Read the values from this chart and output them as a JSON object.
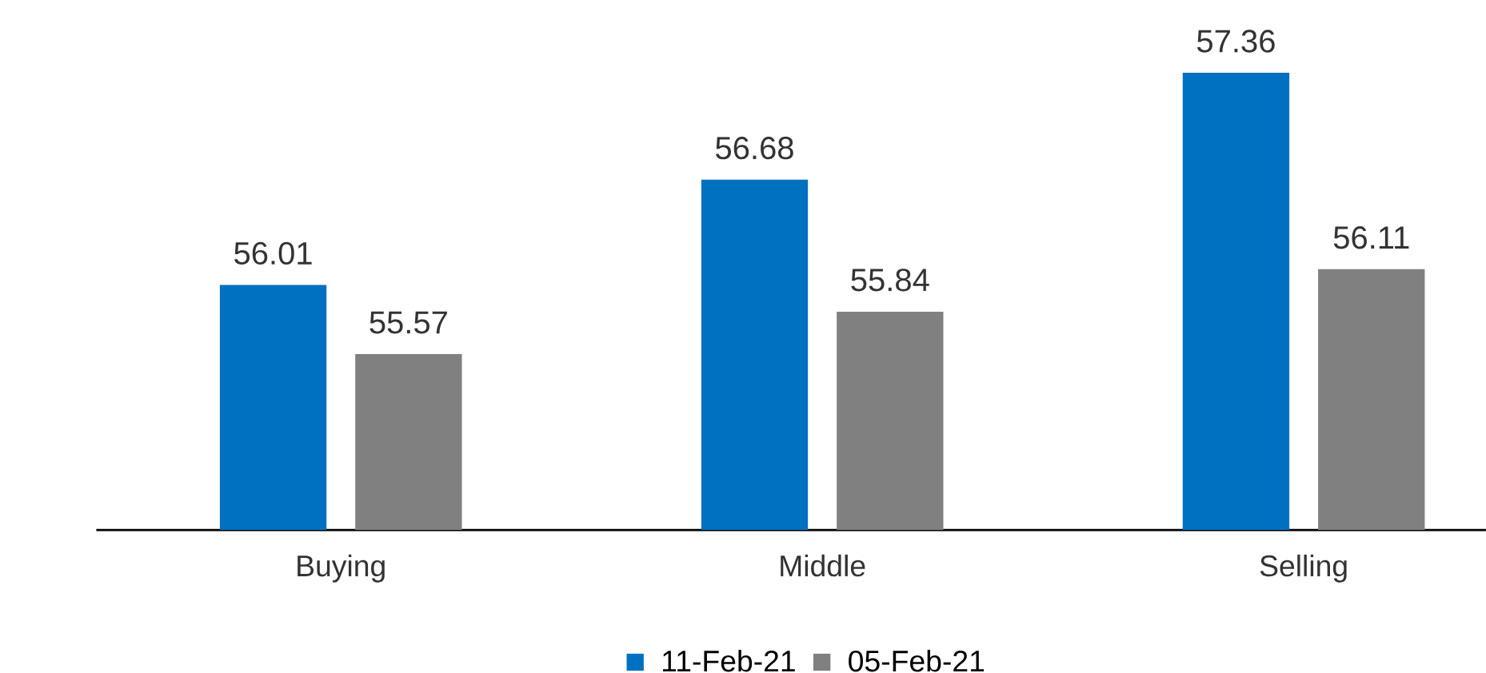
{
  "chart_data": {
    "type": "bar",
    "categories": [
      "Buying",
      "Middle",
      "Selling"
    ],
    "series": [
      {
        "name": "11-Feb-21",
        "color": "#0070c0",
        "values": [
          56.01,
          56.68,
          57.36
        ]
      },
      {
        "name": "05-Feb-21",
        "color": "#808080",
        "values": [
          55.57,
          55.84,
          56.11
        ]
      }
    ],
    "ylim": [
      54.45,
      57.36
    ],
    "data_labels": true,
    "legend": "bottom"
  }
}
